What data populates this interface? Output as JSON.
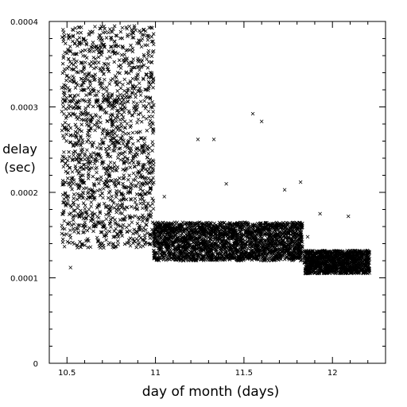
{
  "chart_data": {
    "type": "scatter",
    "title": "",
    "xlabel": "day of month (days)",
    "ylabel_lines": [
      "delay",
      "(sec)"
    ],
    "xlim": [
      10.4,
      12.3
    ],
    "ylim": [
      0,
      0.0004
    ],
    "x_ticks": [
      {
        "value": 10.5,
        "label": "10.5"
      },
      {
        "value": 11,
        "label": "11"
      },
      {
        "value": 11.5,
        "label": "11.5"
      },
      {
        "value": 12,
        "label": "12"
      }
    ],
    "y_ticks": [
      {
        "value": 0,
        "label": "0"
      },
      {
        "value": 0.0001,
        "label": "0.0001"
      },
      {
        "value": 0.0002,
        "label": "0.0002"
      },
      {
        "value": 0.0003,
        "label": "0.0003"
      },
      {
        "value": 0.0004,
        "label": "0.0004"
      }
    ],
    "marker": "x",
    "grid": false,
    "legend": "none",
    "clusters": [
      {
        "x_range": [
          10.47,
          10.99
        ],
        "y_range": [
          0.000135,
          0.000395
        ],
        "points": 1600
      },
      {
        "x_range": [
          10.99,
          11.83
        ],
        "y_range": [
          0.00012,
          0.000165
        ],
        "points": 2400
      },
      {
        "x_range": [
          11.84,
          12.21
        ],
        "y_range": [
          0.000105,
          0.000132
        ],
        "points": 1100
      }
    ],
    "outliers": [
      {
        "x": 10.52,
        "y": 0.000112
      },
      {
        "x": 10.98,
        "y": 0.000282
      },
      {
        "x": 11.24,
        "y": 0.000262
      },
      {
        "x": 11.33,
        "y": 0.000262
      },
      {
        "x": 11.55,
        "y": 0.000292
      },
      {
        "x": 11.6,
        "y": 0.000283
      },
      {
        "x": 11.4,
        "y": 0.00021
      },
      {
        "x": 11.05,
        "y": 0.000195
      },
      {
        "x": 11.73,
        "y": 0.000203
      },
      {
        "x": 11.82,
        "y": 0.000212
      },
      {
        "x": 11.93,
        "y": 0.000175
      },
      {
        "x": 12.09,
        "y": 0.000172
      },
      {
        "x": 11.86,
        "y": 0.000148
      }
    ]
  }
}
